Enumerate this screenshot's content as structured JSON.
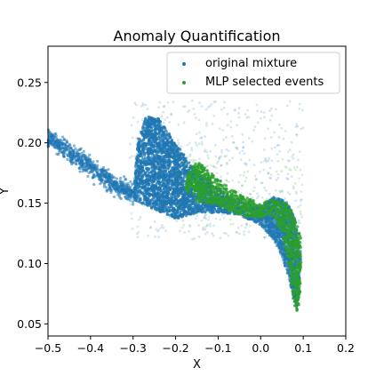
{
  "chart_data": {
    "type": "scatter",
    "title": "Anomaly Quantification",
    "xlabel": "X",
    "ylabel": "Y",
    "xlim": [
      -0.5,
      0.2
    ],
    "ylim": [
      0.04,
      0.28
    ],
    "x_ticks": [
      -0.5,
      -0.4,
      -0.3,
      -0.2,
      -0.1,
      0.0,
      0.1,
      0.2
    ],
    "x_tick_labels": [
      "−0.5",
      "−0.4",
      "−0.3",
      "−0.2",
      "−0.1",
      "0.0",
      "0.1",
      "0.2"
    ],
    "y_ticks": [
      0.05,
      0.1,
      0.15,
      0.2,
      0.25
    ],
    "y_tick_labels": [
      "0.05",
      "0.10",
      "0.15",
      "0.20",
      "0.25"
    ],
    "grid": false,
    "legend_position": "top-right",
    "series": [
      {
        "name": "original mixture",
        "color": "#1f77b4",
        "regions": [
          {
            "kind": "ridge",
            "x": [
              -0.5,
              -0.45,
              -0.4,
              -0.35,
              -0.3
            ],
            "y": [
              0.204,
              0.193,
              0.18,
              0.166,
              0.158
            ],
            "spread": 0.004,
            "count": 700
          },
          {
            "kind": "polygon",
            "points": [
              [
                -0.3,
                0.153
              ],
              [
                -0.29,
                0.2
              ],
              [
                -0.27,
                0.222
              ],
              [
                -0.24,
                0.22
              ],
              [
                -0.2,
                0.2
              ],
              [
                -0.16,
                0.18
              ],
              [
                -0.1,
                0.162
              ],
              [
                -0.05,
                0.152
              ],
              [
                0.0,
                0.147
              ],
              [
                0.0,
                0.132
              ],
              [
                -0.05,
                0.14
              ],
              [
                -0.1,
                0.142
              ],
              [
                -0.15,
                0.142
              ],
              [
                -0.2,
                0.137
              ],
              [
                -0.25,
                0.145
              ],
              [
                -0.3,
                0.153
              ]
            ],
            "count": 5200
          },
          {
            "kind": "polygon",
            "points": [
              [
                0.0,
                0.147
              ],
              [
                0.03,
                0.155
              ],
              [
                0.06,
                0.152
              ],
              [
                0.08,
                0.138
              ],
              [
                0.095,
                0.108
              ],
              [
                0.09,
                0.075
              ],
              [
                0.085,
                0.062
              ],
              [
                0.075,
                0.075
              ],
              [
                0.06,
                0.095
              ],
              [
                0.045,
                0.11
              ],
              [
                0.03,
                0.12
              ],
              [
                0.0,
                0.132
              ]
            ],
            "count": 1600
          }
        ],
        "halo": {
          "x_range": [
            -0.31,
            0.1
          ],
          "y_range": [
            0.12,
            0.235
          ],
          "count": 500
        }
      },
      {
        "name": "MLP selected events",
        "color": "#2ca02c",
        "regions": [
          {
            "kind": "polygon",
            "points": [
              [
                -0.18,
                0.163
              ],
              [
                -0.17,
                0.175
              ],
              [
                -0.15,
                0.185
              ],
              [
                -0.1,
                0.17
              ],
              [
                -0.05,
                0.157
              ],
              [
                0.0,
                0.15
              ],
              [
                0.03,
                0.153
              ],
              [
                0.06,
                0.15
              ],
              [
                0.08,
                0.14
              ],
              [
                0.095,
                0.12
              ],
              [
                0.095,
                0.09
              ],
              [
                0.09,
                0.065
              ],
              [
                0.085,
                0.058
              ],
              [
                0.075,
                0.072
              ],
              [
                0.07,
                0.09
              ],
              [
                0.06,
                0.108
              ],
              [
                0.05,
                0.125
              ],
              [
                0.03,
                0.14
              ],
              [
                0.0,
                0.138
              ],
              [
                -0.05,
                0.14
              ],
              [
                -0.1,
                0.148
              ],
              [
                -0.15,
                0.152
              ],
              [
                -0.18,
                0.163
              ]
            ],
            "count": 2400
          }
        ],
        "halo": {
          "x_range": [
            -0.2,
            0.1
          ],
          "y_range": [
            0.13,
            0.19
          ],
          "count": 150
        }
      }
    ]
  }
}
